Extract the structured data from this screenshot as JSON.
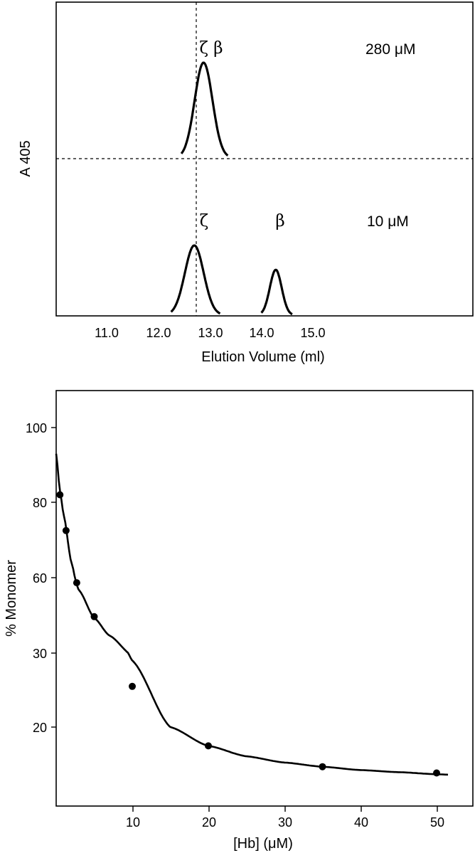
{
  "chart_data": [
    {
      "type": "line",
      "xlabel": "Elution Volume (ml)",
      "ylabel": "A 405",
      "x_ticks": [
        "11.0",
        "12.0",
        "13.0",
        "14.0",
        "15.0"
      ],
      "xlim": [
        10.0,
        18.2
      ],
      "annotations": {
        "upper_peak_label": "ζ β",
        "upper_concentration": "280 μM",
        "lower_peak1_label": "ζ",
        "lower_peak2_label": "β",
        "lower_concentration": "10 μM"
      },
      "reference_lines": {
        "vertical_x": 12.7,
        "horizontal": "baseline of 280 μM trace"
      },
      "series": [
        {
          "name": "280 μM",
          "peaks": [
            {
              "center": 12.88,
              "height": 1.0,
              "base_start": 12.45,
              "base_end": 13.35
            }
          ]
        },
        {
          "name": "10 μM",
          "peaks": [
            {
              "center": 12.7,
              "height": 1.0,
              "base_start": 12.25,
              "base_end": 13.2
            },
            {
              "center": 14.28,
              "height": 0.65,
              "base_start": 14.0,
              "base_end": 14.6
            }
          ]
        }
      ]
    },
    {
      "type": "scatter",
      "xlabel": "[Hb] (μM)",
      "ylabel": "% Monomer",
      "x_ticks": [
        "10",
        "20",
        "30",
        "40",
        "50"
      ],
      "y_ticks": [
        "20",
        "30",
        "60",
        "80",
        "100"
      ],
      "xlim": [
        0,
        55
      ],
      "points": [
        {
          "x": 0.5,
          "y": 82
        },
        {
          "x": 1.3,
          "y": 72.5
        },
        {
          "x": 2.7,
          "y": 58
        },
        {
          "x": 5.0,
          "y": 44.5
        },
        {
          "x": 10.0,
          "y": 25.5
        },
        {
          "x": 20.0,
          "y": 15.5
        },
        {
          "x": 35.0,
          "y": 10.5
        },
        {
          "x": 50.0,
          "y": 9.0
        }
      ],
      "fit_curve": {
        "type": "monomer-dimer equilibrium fit",
        "x_range": [
          0,
          51.5
        ]
      }
    }
  ]
}
